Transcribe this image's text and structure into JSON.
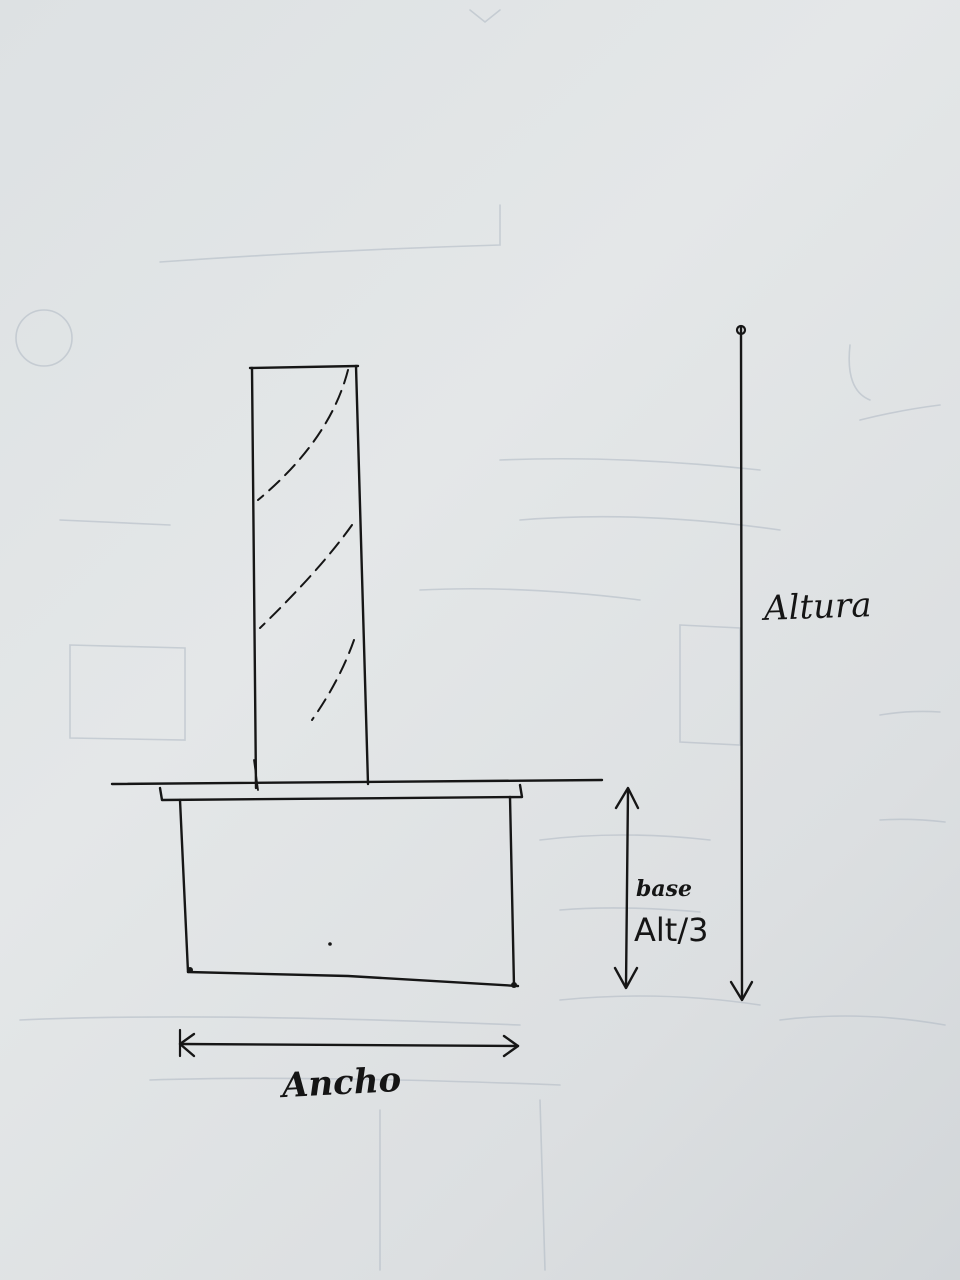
{
  "labels": {
    "altura": "Altura",
    "base": "base",
    "alt3": "Alt/3",
    "ancho": "Ancho"
  },
  "colors": {
    "ink": "#161616",
    "paper": "#dde1e3",
    "bleed_through": "#aeb8c2"
  }
}
